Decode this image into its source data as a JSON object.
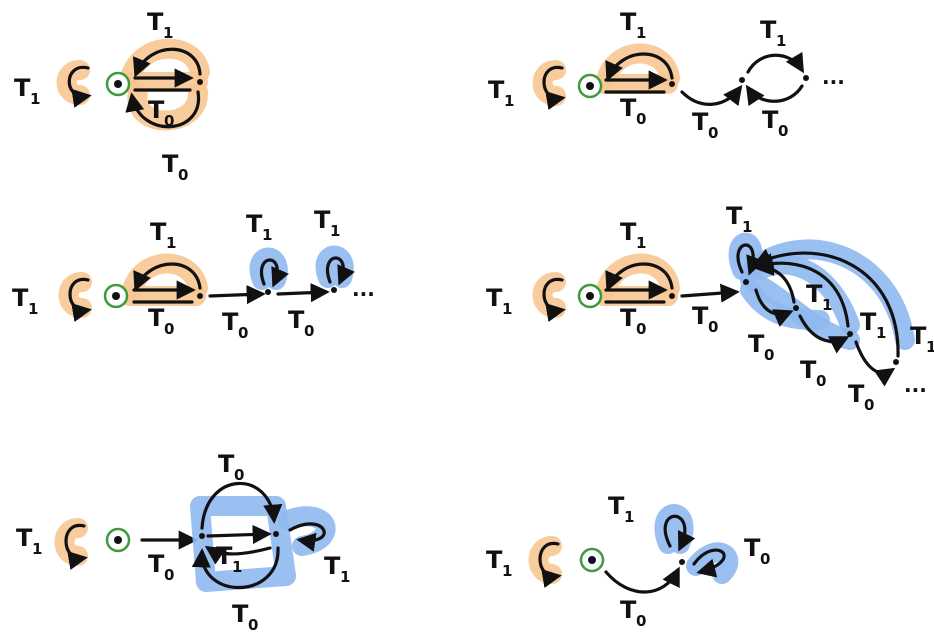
{
  "colors": {
    "highlight_orange": "#f7c792",
    "highlight_blue": "#8fb8ef",
    "start_ring": "#3c9b3c",
    "ink": "#111111"
  },
  "labels": {
    "T": "T",
    "sub0": "0",
    "sub1": "1",
    "ellipsis": "..."
  }
}
